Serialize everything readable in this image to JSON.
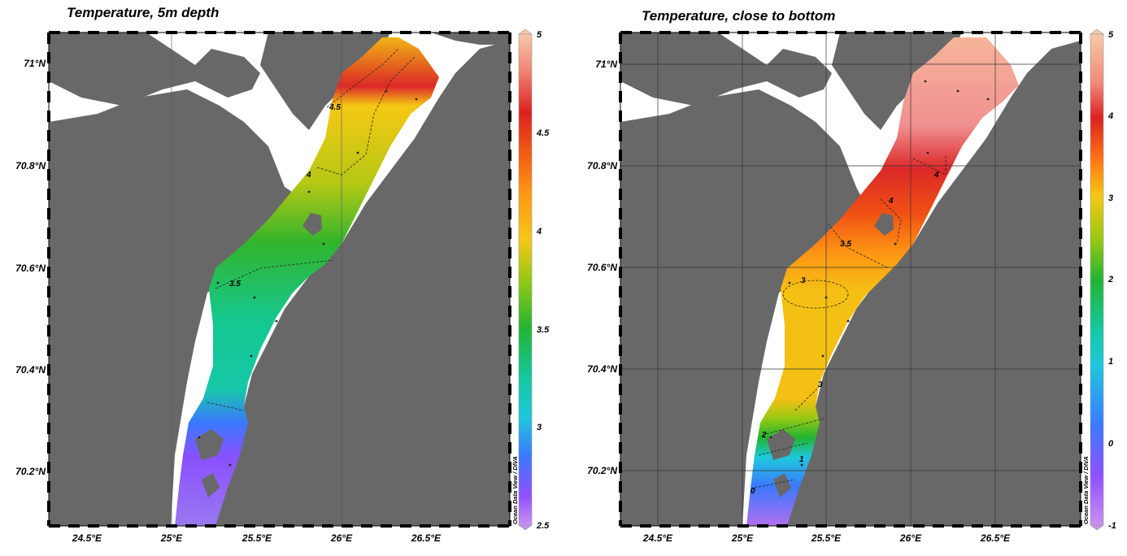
{
  "panels": [
    {
      "title": "Temperature, 5m depth",
      "x_ticks": [
        "24.5°E",
        "25°E",
        "25.5°E",
        "26°E",
        "26.5°E"
      ],
      "y_ticks": [
        "71°N",
        "70.8°N",
        "70.6°N",
        "70.4°N",
        "70.2°N"
      ],
      "colorbar_ticks": [
        "5",
        "4.5",
        "4",
        "3.5",
        "3",
        "2.5"
      ],
      "colorbar_range": [
        2.5,
        5
      ],
      "contour_labels": [
        "4.5",
        "4",
        "3.5"
      ],
      "credit": "Ocean Data View / DIVA"
    },
    {
      "title": "Temperature, close to bottom",
      "x_ticks": [
        "24.5°E",
        "25°E",
        "25.5°E",
        "26°E",
        "26.5°E"
      ],
      "y_ticks": [
        "71°N",
        "70.8°N",
        "70.6°N",
        "70.4°N",
        "70.2°N"
      ],
      "colorbar_ticks": [
        "5",
        "4",
        "3",
        "2",
        "1",
        "0",
        "-1"
      ],
      "colorbar_range": [
        -1,
        5
      ],
      "contour_labels": [
        "4",
        "4",
        "3.5",
        "3",
        "3",
        "2",
        "1",
        "0"
      ],
      "credit": "Ocean Data View / DIVA"
    }
  ],
  "colors": {
    "land": "#686868",
    "water": "#ffffff",
    "palette": [
      "#c890f0",
      "#9050ff",
      "#3c78ff",
      "#1ec8dc",
      "#14c890",
      "#2cb428",
      "#96c814",
      "#f5c814",
      "#ff9014",
      "#f05014",
      "#dc2020",
      "#f07a7a",
      "#fab494"
    ]
  }
}
